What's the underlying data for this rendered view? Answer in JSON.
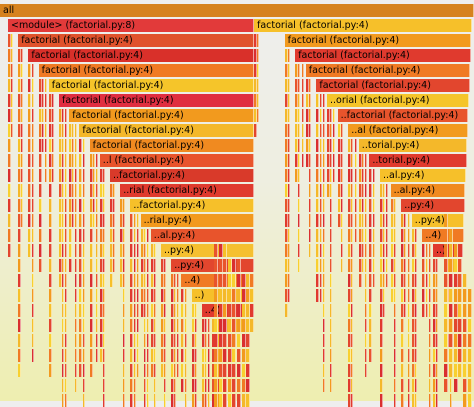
{
  "flamegraph": {
    "palette": [
      "#e03a2e",
      "#e8542c",
      "#f07a24",
      "#f29a1e",
      "#f4b82a",
      "#f8d030",
      "#e2462e",
      "#d92f2f",
      "#f6c02a"
    ],
    "root": {
      "label": "all",
      "color": "#d6821e"
    },
    "left_chain": [
      {
        "label": "<module> (factorial.py:8)",
        "color": "#e23a3a"
      },
      {
        "label": "factorial (factorial.py:4)",
        "color": "#e0522c"
      },
      {
        "label": "factorial (factorial.py:4)",
        "color": "#d9302a"
      },
      {
        "label": "factorial (factorial.py:4)",
        "color": "#f07a24"
      },
      {
        "label": "factorial (factorial.py:4)",
        "color": "#f5c52a"
      },
      {
        "label": "factorial (factorial.py:4)",
        "color": "#e02e40"
      },
      {
        "label": "factorial (factorial.py:4)",
        "color": "#f29a1e"
      },
      {
        "label": "factorial (factorial.py:4)",
        "color": "#f4b82a"
      },
      {
        "label": "factorial (factorial.py:4)",
        "color": "#f08a20"
      },
      {
        "label": "..l (factorial.py:4)",
        "color": "#e8542c"
      },
      {
        "label": "..factorial.py:4)",
        "color": "#d93a2a"
      },
      {
        "label": "..rial (factorial.py:4)",
        "color": "#e03a2e"
      },
      {
        "label": "..factorial.py:4)",
        "color": "#f6c02a"
      },
      {
        "label": "..rial.py:4)",
        "color": "#f29a1e"
      },
      {
        "label": "..al.py:4)",
        "color": "#e8542c"
      },
      {
        "label": "..py:4)",
        "color": "#f5c030"
      },
      {
        "label": "..py:4)",
        "color": "#e2462e"
      },
      {
        "label": "..4)",
        "color": "#f07a24"
      },
      {
        "label": "..)",
        "color": "#f6c02a"
      },
      {
        "label": "..4)",
        "color": "#e03a2e"
      },
      {
        "label": "..",
        "color": "#f4b82a"
      }
    ],
    "right_chain": [
      {
        "label": "factorial (factorial.py:4)",
        "color": "#f6c02a"
      },
      {
        "label": "factorial (factorial.py:4)",
        "color": "#f29a1e"
      },
      {
        "label": "factorial (factorial.py:4)",
        "color": "#e03a2e"
      },
      {
        "label": "factorial (factorial.py:4)",
        "color": "#f07a24"
      },
      {
        "label": "factorial (factorial.py:4)",
        "color": "#e2462e"
      },
      {
        "label": "..orial (factorial.py:4)",
        "color": "#f5c52a"
      },
      {
        "label": "..factorial (factorial.py:4)",
        "color": "#e8542c"
      },
      {
        "label": "..al (factorial.py:4)",
        "color": "#f29a1e"
      },
      {
        "label": "..torial.py:4)",
        "color": "#f4b82a"
      },
      {
        "label": "..torial.py:4)",
        "color": "#e03a2e"
      },
      {
        "label": "..al.py:4)",
        "color": "#f6c02a"
      },
      {
        "label": "..al.py:4)",
        "color": "#f08a20"
      },
      {
        "label": "..py:4)",
        "color": "#e2462e"
      },
      {
        "label": "..py:4)",
        "color": "#f6c02a"
      },
      {
        "label": "..4)",
        "color": "#f07a24"
      },
      {
        "label": "..)",
        "color": "#e03a2e"
      },
      {
        "label": "",
        "color": "#f4b82a"
      }
    ]
  }
}
